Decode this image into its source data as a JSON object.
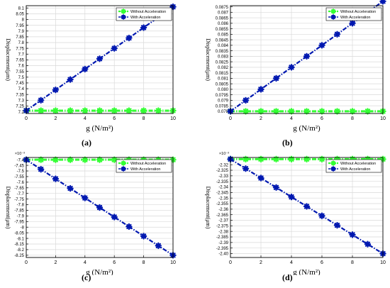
{
  "legend_labels": [
    "Without Acceleration",
    "With Acceleration"
  ],
  "colors": {
    "without": "#33ff33",
    "with": "#0018b0",
    "grid": "#d9d9d9",
    "frame": "#000000"
  },
  "chart_data": [
    {
      "type": "line",
      "panel_label": "(a)",
      "xlabel": "g (N/m²)",
      "ylabel": "Displacement(μm)",
      "exponent": "",
      "xlim": [
        0,
        10
      ],
      "ylim": [
        7.185,
        8.12
      ],
      "xticks": [
        "0",
        "2",
        "4",
        "6",
        "8",
        "10"
      ],
      "yticks": [
        "7.2",
        "7.25",
        "7.3",
        "7.35",
        "7.4",
        "7.45",
        "7.5",
        "7.55",
        "7.6",
        "7.65",
        "7.7",
        "7.75",
        "7.8",
        "7.85",
        "7.9",
        "7.95",
        "8",
        "8.05",
        "8.1"
      ],
      "grid": true,
      "legend_position": "top-right",
      "x": [
        0,
        1,
        2,
        3,
        4,
        5,
        6,
        7,
        8,
        9,
        10
      ],
      "series": [
        {
          "name": "Without Acceleration",
          "values": [
            7.21,
            7.21,
            7.21,
            7.21,
            7.21,
            7.21,
            7.21,
            7.21,
            7.21,
            7.21,
            7.21
          ]
        },
        {
          "name": "With Acceleration",
          "values": [
            7.21,
            7.3,
            7.39,
            7.48,
            7.57,
            7.66,
            7.75,
            7.84,
            7.93,
            8.02,
            8.11
          ]
        }
      ]
    },
    {
      "type": "line",
      "panel_label": "(b)",
      "xlabel": "g (N/m²)",
      "ylabel": "Displacement(μm)",
      "exponent": "",
      "xlim": [
        0,
        10
      ],
      "ylim": [
        0.0778,
        0.0876
      ],
      "xticks": [
        "0",
        "2",
        "4",
        "6",
        "8",
        "10"
      ],
      "yticks": [
        "0.078",
        "0.0785",
        "0.079",
        "0.0795",
        "0.080",
        "0.0805",
        "0.081",
        "0.0815",
        "0.082",
        "0.0825",
        "0.083",
        "0.0835",
        "0.084",
        "0.0845",
        "0.085",
        "0.0855",
        "0.086",
        "0.0865",
        "0.087",
        "0.0875"
      ],
      "grid": true,
      "legend_position": "top-right",
      "x": [
        0,
        1,
        2,
        3,
        4,
        5,
        6,
        7,
        8,
        9,
        10
      ],
      "series": [
        {
          "name": "Without Acceleration",
          "values": [
            0.078,
            0.078,
            0.078,
            0.078,
            0.078,
            0.078,
            0.078,
            0.078,
            0.078,
            0.078,
            0.078
          ]
        },
        {
          "name": "With Acceleration",
          "values": [
            0.078,
            0.079,
            0.08,
            0.081,
            0.082,
            0.083,
            0.084,
            0.085,
            0.086,
            0.087,
            0.088
          ]
        }
      ]
    },
    {
      "type": "line",
      "panel_label": "(c)",
      "xlabel": "g (N/m²)",
      "ylabel": "Displacement(μm)",
      "exponent": "×10⁻³",
      "xlim": [
        0,
        10
      ],
      "ylim": [
        -8.27,
        -7.38
      ],
      "xticks": [
        "0",
        "2",
        "4",
        "6",
        "8",
        "10"
      ],
      "yticks": [
        "-7.4",
        "-7.45",
        "-7.5",
        "-7.55",
        "-7.6",
        "-7.65",
        "-7.7",
        "-7.75",
        "-7.8",
        "-7.85",
        "-7.9",
        "-7.95",
        "-8",
        "-8.05",
        "-8.1",
        "-8.15",
        "-8.2",
        "-8.25"
      ],
      "grid": true,
      "legend_position": "top-right",
      "x": [
        0,
        1,
        2,
        3,
        4,
        5,
        6,
        7,
        8,
        9,
        10
      ],
      "series": [
        {
          "name": "Without Acceleration",
          "values": [
            -7.4,
            -7.4,
            -7.4,
            -7.4,
            -7.4,
            -7.4,
            -7.4,
            -7.4,
            -7.4,
            -7.4,
            -7.4
          ]
        },
        {
          "name": "With Acceleration",
          "values": [
            -7.4,
            -7.485,
            -7.57,
            -7.655,
            -7.74,
            -7.825,
            -7.91,
            -7.995,
            -8.08,
            -8.165,
            -8.25
          ]
        }
      ]
    },
    {
      "type": "line",
      "panel_label": "(d)",
      "xlabel": "g (N/m²)",
      "ylabel": "Displacement(μm)",
      "exponent": "×10⁻³",
      "xlim": [
        0,
        10
      ],
      "ylim": [
        -2.4035,
        -2.3135
      ],
      "xticks": [
        "0",
        "2",
        "4",
        "6",
        "8",
        "10"
      ],
      "yticks": [
        "-2.32",
        "-2.325",
        "-2.33",
        "-2.335",
        "-2.34",
        "-2.345",
        "-2.35",
        "-2.355",
        "-2.36",
        "-2.365",
        "-2.37",
        "-2.375",
        "-2.38",
        "-2.385",
        "-2.39",
        "-2.395",
        "-2.40"
      ],
      "grid": true,
      "legend_position": "top-right",
      "x": [
        0,
        1,
        2,
        3,
        4,
        5,
        6,
        7,
        8,
        9,
        10
      ],
      "series": [
        {
          "name": "Without Acceleration",
          "values": [
            -2.315,
            -2.315,
            -2.315,
            -2.315,
            -2.315,
            -2.315,
            -2.315,
            -2.315,
            -2.315,
            -2.315,
            -2.315
          ]
        },
        {
          "name": "With Acceleration",
          "values": [
            -2.315,
            -2.3235,
            -2.332,
            -2.3405,
            -2.349,
            -2.3575,
            -2.366,
            -2.3745,
            -2.383,
            -2.3915,
            -2.4
          ]
        }
      ]
    }
  ]
}
